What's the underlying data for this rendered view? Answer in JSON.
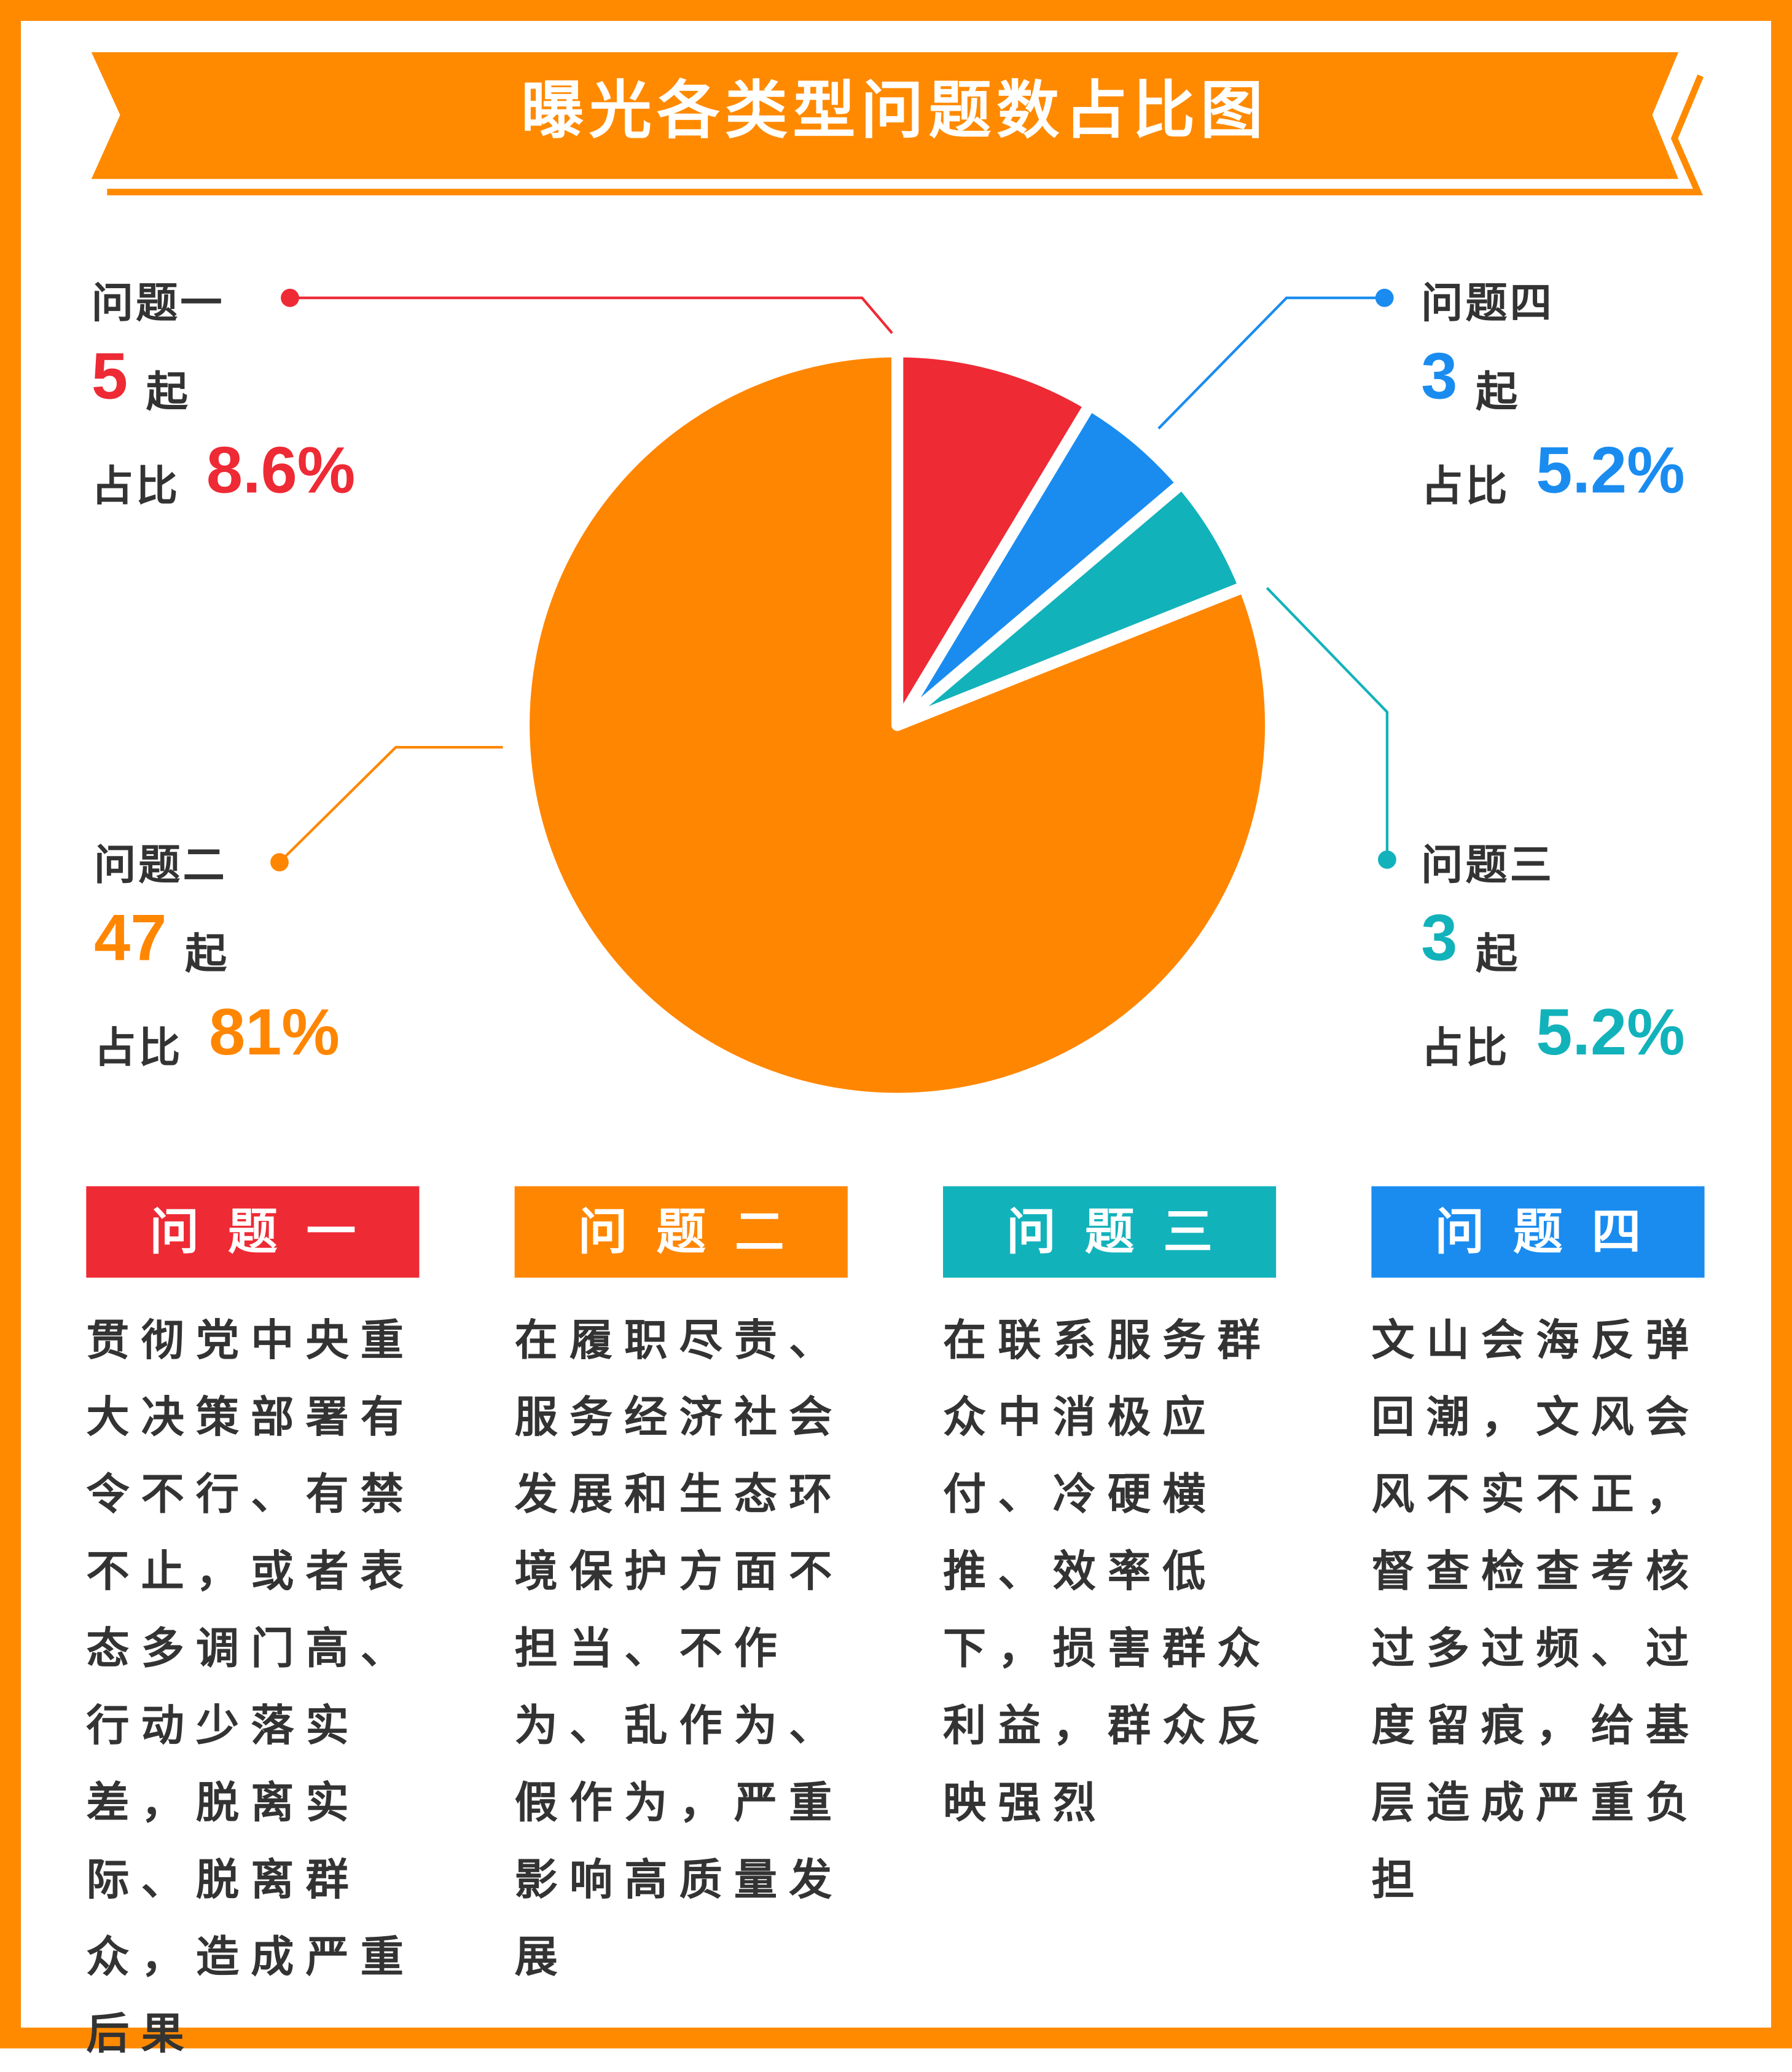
{
  "chart_data": {
    "type": "pie",
    "title": "曝光各类型问题数占比图",
    "categories": [
      "问题一",
      "问题二",
      "问题三",
      "问题四"
    ],
    "values": [
      5,
      47,
      3,
      3
    ],
    "unit": "起",
    "share_caption": "占比",
    "shares": [
      8.6,
      81,
      5.2,
      5.2
    ],
    "share_labels": [
      "8.6%",
      "81%",
      "5.2%",
      "5.2%"
    ],
    "colors": [
      "#ee2a35",
      "#ff8600",
      "#12b2bb",
      "#1a8cf0"
    ],
    "descriptions": [
      "贯彻党中央重大决策部署有令不行、有禁不止，或者表态多调门高、行动少落实差，脱离实际、脱离群众，造成严重后果",
      "在履职尽责、服务经济社会发展和生态环境保护方面不担当、不作为、乱作为、假作为，严重影响高质量发展",
      "在联系服务群众中消极应付、冷硬横推、效率低下，损害群众利益，群众反映强烈",
      "文山会海反弹回潮，文风会风不实不正，督查检查考核过多过频、过度留痕，给基层造成严重负担"
    ]
  }
}
